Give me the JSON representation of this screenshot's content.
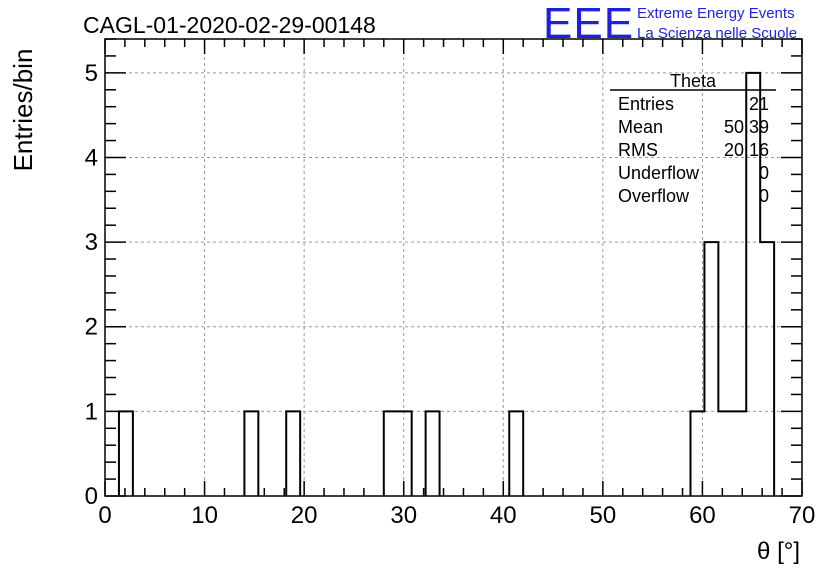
{
  "chart_data": {
    "type": "bar",
    "title": "CAGL-01-2020-02-29-00148",
    "xlabel": "θ [°]",
    "ylabel": "Entries/bin",
    "xlim": [
      0,
      70
    ],
    "ylim": [
      0,
      5.4
    ],
    "x_ticks": [
      "0",
      "10",
      "20",
      "30",
      "40",
      "50",
      "60",
      "70"
    ],
    "y_ticks": [
      "0",
      "1",
      "2",
      "3",
      "4",
      "5"
    ],
    "grid": true,
    "bin_width": 1.4,
    "bins": [
      {
        "x0": 1.4,
        "value": 1
      },
      {
        "x0": 14.0,
        "value": 1
      },
      {
        "x0": 18.2,
        "value": 1
      },
      {
        "x0": 28.0,
        "value": 1
      },
      {
        "x0": 29.4,
        "value": 1
      },
      {
        "x0": 32.2,
        "value": 1
      },
      {
        "x0": 40.6,
        "value": 1
      },
      {
        "x0": 58.8,
        "value": 1
      },
      {
        "x0": 60.2,
        "value": 3
      },
      {
        "x0": 61.6,
        "value": 1
      },
      {
        "x0": 63.0,
        "value": 1
      },
      {
        "x0": 64.4,
        "value": 5
      },
      {
        "x0": 65.8,
        "value": 3
      }
    ],
    "stats": {
      "name": "Theta",
      "rows": [
        {
          "label": "Entries",
          "value": "21"
        },
        {
          "label": "Mean",
          "value": "50.39"
        },
        {
          "label": "RMS",
          "value": "20.16"
        },
        {
          "label": "Underflow",
          "value": "0"
        },
        {
          "label": "Overflow",
          "value": "0"
        }
      ]
    }
  },
  "logo": {
    "letters": "EEE",
    "line1": "Extreme Energy Events",
    "line2": "La Scienza nelle Scuole",
    "color": "#1f1fe0"
  }
}
